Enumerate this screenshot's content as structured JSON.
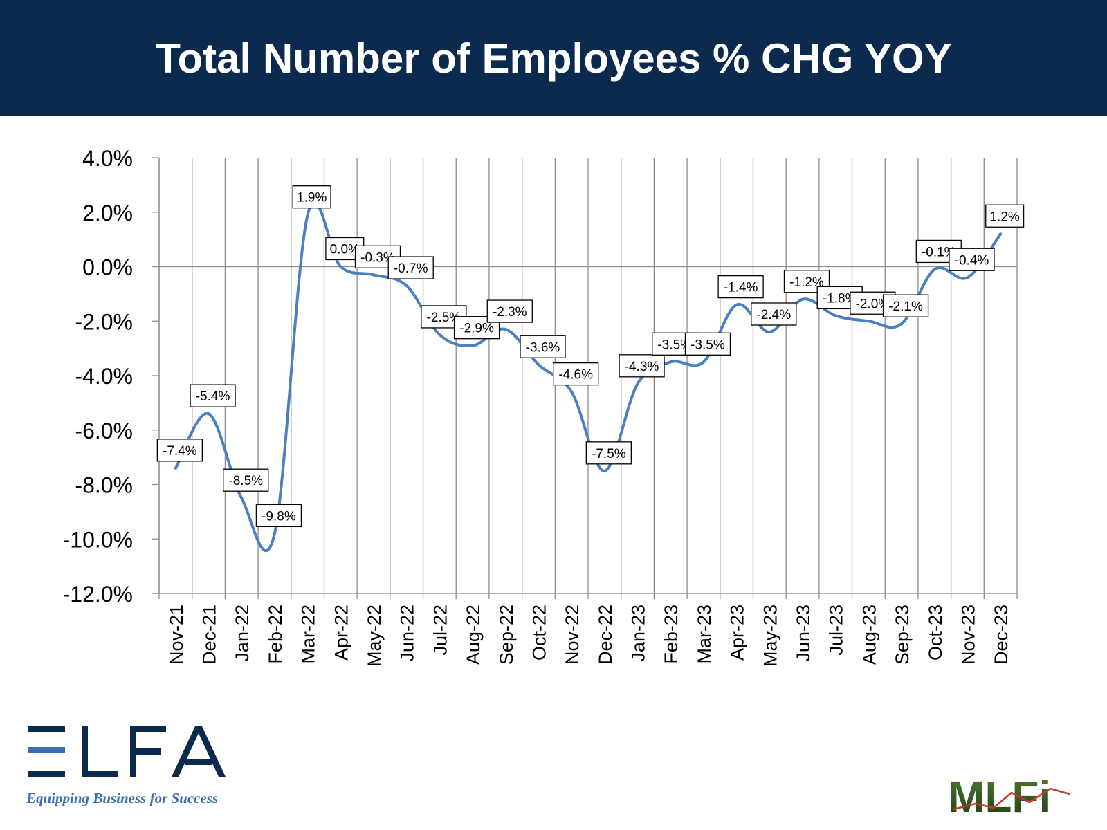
{
  "header": {
    "title": "Total Number of Employees % CHG YOY",
    "background": "#0b2a4e"
  },
  "chart_data": {
    "type": "line",
    "title": "Total Number of Employees % CHG YOY",
    "xlabel": "",
    "ylabel": "",
    "categories": [
      "Nov-21",
      "Dec-21",
      "Jan-22",
      "Feb-22",
      "Mar-22",
      "Apr-22",
      "May-22",
      "Jun-22",
      "Jul-22",
      "Aug-22",
      "Sep-22",
      "Oct-22",
      "Nov-22",
      "Dec-22",
      "Jan-23",
      "Feb-23",
      "Mar-23",
      "Apr-23",
      "May-23",
      "Jun-23",
      "Jul-23",
      "Aug-23",
      "Sep-23",
      "Oct-23",
      "Nov-23",
      "Dec-23"
    ],
    "series": [
      {
        "name": "",
        "values": [
          -7.4,
          -5.4,
          -8.5,
          -9.8,
          1.9,
          0.0,
          -0.3,
          -0.7,
          -2.5,
          -2.9,
          -2.3,
          -3.6,
          -4.6,
          -7.5,
          -4.3,
          -3.5,
          -3.5,
          -1.4,
          -2.4,
          -1.2,
          -1.8,
          -2.0,
          -2.1,
          -0.1,
          -0.4,
          1.2
        ],
        "labels": [
          "-7.4%",
          "-5.4%",
          "-8.5%",
          "-9.8%",
          "1.9%",
          "0.0%",
          "-0.3%",
          "-0.7%",
          "-2.5%",
          "-2.9%",
          "-2.3%",
          "-3.6%",
          "-4.6%",
          "-7.5%",
          "-4.3%",
          "-3.5%",
          "-3.5%",
          "-1.4%",
          "-2.4%",
          "-1.2%",
          "-1.8%",
          "-2.0%",
          "-2.1%",
          "-0.1%",
          "-0.4%",
          "1.2%"
        ],
        "color": "#4a7fc1"
      }
    ],
    "ylim": [
      -12,
      4
    ],
    "yticks": [
      4,
      2,
      0,
      -2,
      -4,
      -6,
      -8,
      -10,
      -12
    ],
    "ytick_labels": [
      "4.0%",
      "2.0%",
      "0.0%",
      "-2.0%",
      "-4.0%",
      "-6.0%",
      "-8.0%",
      "-10.0%",
      "-12.0%"
    ],
    "grid": "vertical",
    "legend": "none"
  },
  "logos": {
    "elfa_text": "ELFA",
    "elfa_tagline": "Equipping Business for Success",
    "elfa_color": "#0b2a4e",
    "elfa_accent": "#3b6db3",
    "mlfi_text": "MLFi",
    "mlfi_color": "#2f5a1e"
  }
}
